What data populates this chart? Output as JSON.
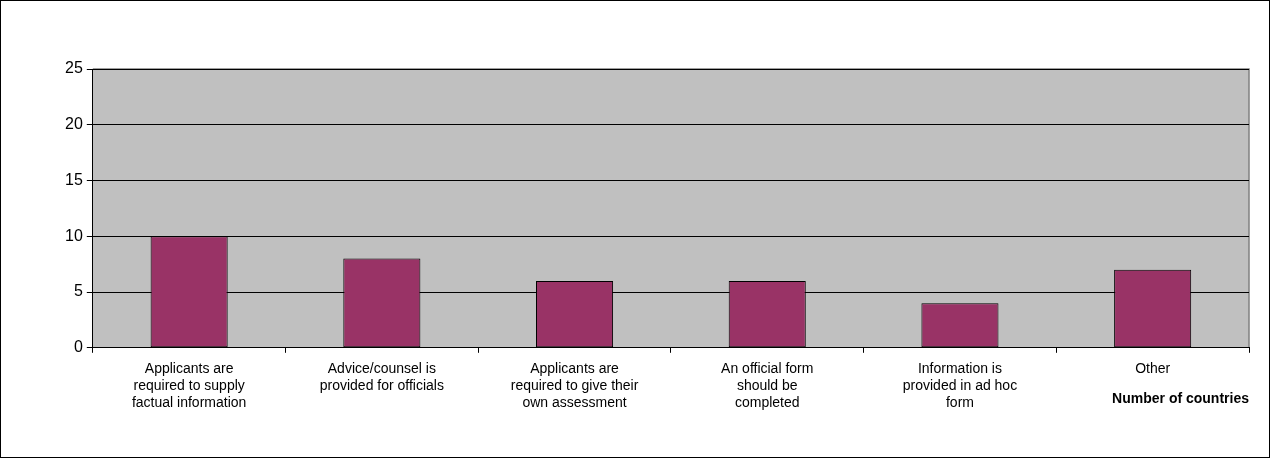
{
  "chart_data": {
    "type": "bar",
    "xlabel": "Number of countries",
    "categories": [
      "Applicants are required to supply factual information",
      "Advice/counsel is provided for officials",
      "Applicants are required to give their own assessment",
      "An official form should be completed",
      "Information is provided in ad hoc form",
      "Other"
    ],
    "values": [
      10,
      8,
      6,
      6,
      4,
      7
    ],
    "color": "#993366",
    "ylim": [
      0,
      25
    ],
    "yticks": [
      0,
      5,
      10,
      15,
      20,
      25
    ],
    "grid": "y",
    "legend": false
  }
}
